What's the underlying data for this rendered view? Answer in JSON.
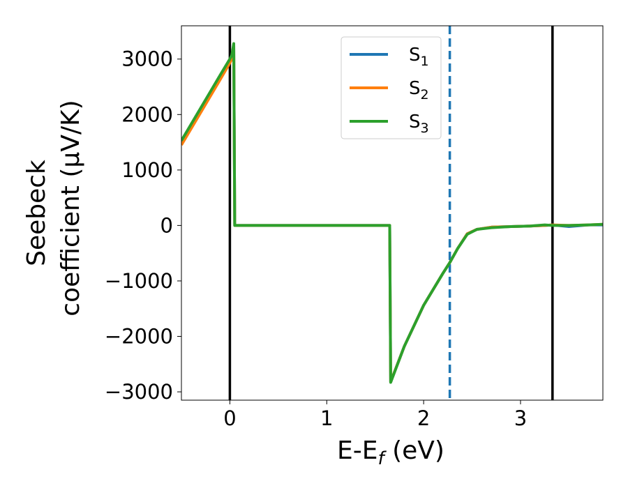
{
  "chart_data": {
    "type": "line",
    "title": "",
    "xlabel": "E-E",
    "xlabel_sub": "f",
    "xlabel_unit": " (eV)",
    "ylabel_line1": "Seebeck",
    "ylabel_line2": "coefficient  (μV/K)",
    "xlim": [
      -0.5,
      3.85
    ],
    "ylim": [
      -3150,
      3600
    ],
    "xticks": [
      0,
      1,
      2,
      3
    ],
    "xtick_labels": [
      "0",
      "1",
      "2",
      "3"
    ],
    "yticks": [
      3000,
      2000,
      1000,
      0,
      -1000,
      -2000,
      -3000
    ],
    "ytick_labels": [
      "3000",
      "2000",
      "1000",
      "0",
      "−1000",
      "−2000",
      "−3000"
    ],
    "grid": false,
    "legend_position": "top-center",
    "series": [
      {
        "name": "S",
        "subscript": "1",
        "color": "#1f77b4",
        "x": [
          -0.5,
          -0.3,
          -0.1,
          0.0,
          0.02,
          0.04,
          0.05,
          0.5,
          1.0,
          1.5,
          1.65,
          1.66,
          1.8,
          2.0,
          2.2,
          2.27,
          2.35,
          2.45,
          2.55,
          2.7,
          2.9,
          3.1,
          3.25,
          3.33,
          3.5,
          3.7,
          3.85
        ],
        "y": [
          1490,
          2080,
          2670,
          2960,
          3020,
          3260,
          0,
          0,
          0,
          0,
          0,
          -2820,
          -2180,
          -1440,
          -860,
          -670,
          -420,
          -150,
          -70,
          -30,
          -20,
          -10,
          0,
          10,
          -20,
          10,
          10
        ]
      },
      {
        "name": "S",
        "subscript": "2",
        "color": "#ff7f0e",
        "x": [
          -0.5,
          -0.3,
          -0.1,
          0.0,
          0.02,
          0.04,
          0.05,
          0.5,
          1.0,
          1.5,
          1.65,
          1.66,
          1.8,
          2.0,
          2.2,
          2.27,
          2.35,
          2.45,
          2.55,
          2.7,
          2.9,
          3.1,
          3.25,
          3.33,
          3.5,
          3.7,
          3.85
        ],
        "y": [
          1450,
          2040,
          2630,
          2930,
          3000,
          3260,
          0,
          0,
          0,
          0,
          0,
          -2820,
          -2180,
          -1440,
          -860,
          -670,
          -420,
          -150,
          -70,
          -30,
          -20,
          -10,
          0,
          10,
          0,
          10,
          20
        ]
      },
      {
        "name": "S",
        "subscript": "3",
        "color": "#2ca02c",
        "x": [
          -0.5,
          -0.3,
          -0.1,
          0.0,
          0.02,
          0.04,
          0.05,
          0.5,
          1.0,
          1.5,
          1.65,
          1.66,
          1.8,
          2.0,
          2.2,
          2.27,
          2.35,
          2.45,
          2.55,
          2.7,
          2.9,
          3.1,
          3.25,
          3.33,
          3.5,
          3.7,
          3.85
        ],
        "y": [
          1530,
          2120,
          2710,
          3000,
          3070,
          3280,
          0,
          0,
          0,
          0,
          0,
          -2830,
          -2180,
          -1440,
          -860,
          -670,
          -420,
          -160,
          -70,
          -40,
          -20,
          -10,
          10,
          0,
          0,
          10,
          20
        ]
      }
    ],
    "vertical_lines": [
      {
        "x": 0.0,
        "color": "#000000",
        "style": "solid"
      },
      {
        "x": 2.27,
        "color": "#1f77b4",
        "style": "dashed"
      },
      {
        "x": 3.33,
        "color": "#000000",
        "style": "solid"
      }
    ]
  }
}
